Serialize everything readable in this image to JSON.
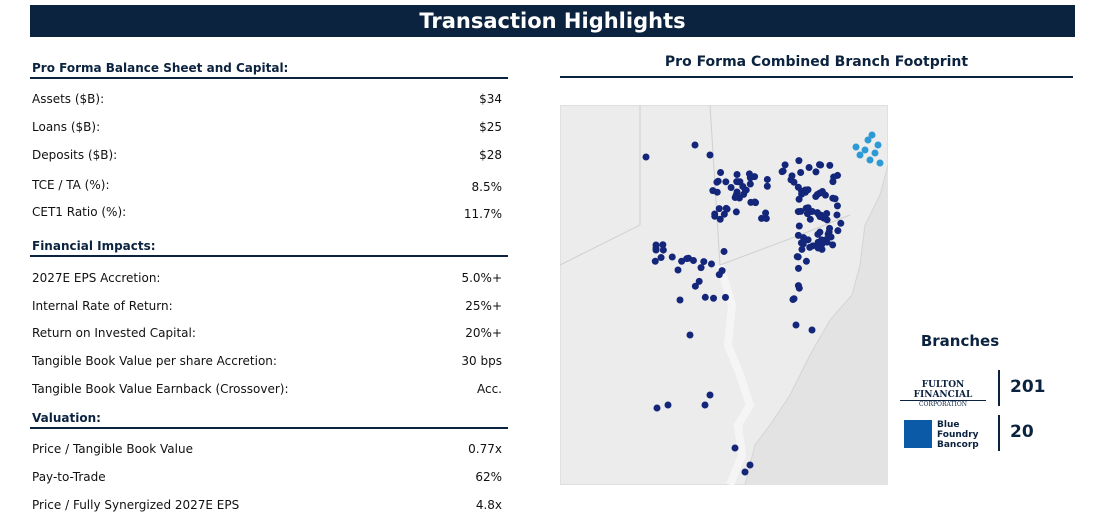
{
  "header": {
    "title": "Transaction Highlights"
  },
  "sections": [
    {
      "title": "Pro Forma Balance Sheet and Capital:",
      "rows": [
        [
          "Assets ($B):",
          "$34"
        ],
        [
          "Loans ($B):",
          "$25"
        ],
        [
          "Deposits ($B):",
          "$28"
        ],
        [
          "TCE / TA (%):",
          "8.5%"
        ],
        [
          "CET1 Ratio (%):",
          "11.7%"
        ]
      ]
    },
    {
      "title": "Financial Impacts:",
      "rows": [
        [
          "2027E EPS Accretion:",
          "5.0%+"
        ],
        [
          "Internal Rate of Return:",
          "25%+"
        ],
        [
          "Return on Invested Capital:",
          "20%+"
        ],
        [
          "Tangible Book Value per share Accretion:",
          "30 bps"
        ],
        [
          "Tangible Book Value Earnback (Crossover):",
          "Acc."
        ]
      ]
    },
    {
      "title": "Valuation:",
      "rows": [
        [
          "Price  / Tangible Book Value",
          "0.77x"
        ],
        [
          "Pay-to-Trade",
          "62%"
        ],
        [
          "Price / Fully Synergized 2027E EPS",
          "4.8x"
        ]
      ]
    }
  ],
  "map": {
    "title": "Pro Forma Combined Branch Footprint",
    "legend_title": "Branches",
    "banks": [
      {
        "name": "FULTON FINANCIAL",
        "subtitle": "CORPORATION",
        "count": "201"
      },
      {
        "name": "Blue Foundry Bancorp",
        "count": "20"
      }
    ]
  }
}
